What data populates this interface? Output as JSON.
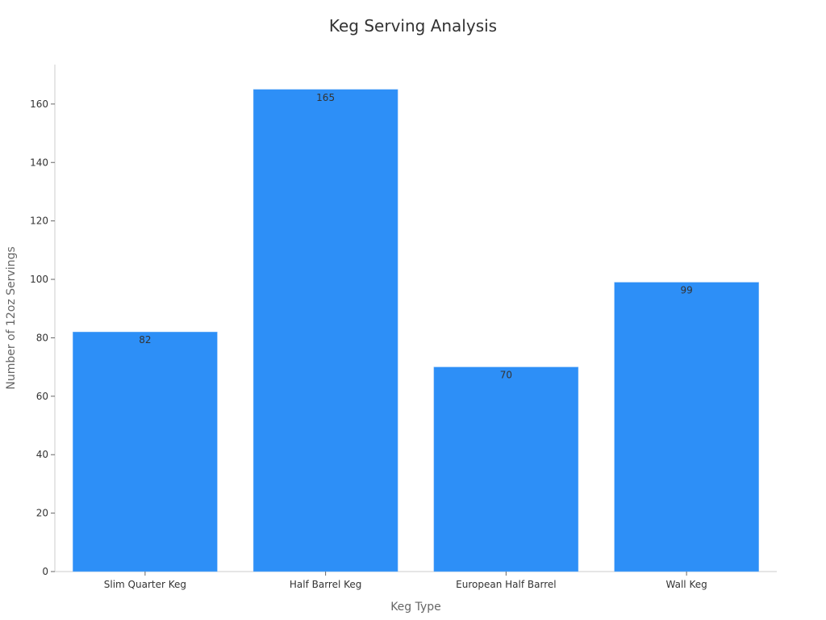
{
  "chart_data": {
    "type": "bar",
    "title": "Keg Serving Analysis",
    "xlabel": "Keg Type",
    "ylabel": "Number of 12oz Servings",
    "categories": [
      "Slim Quarter Keg",
      "Half Barrel Keg",
      "European Half Barrel",
      "Wall Keg"
    ],
    "values": [
      82,
      165,
      70,
      99
    ],
    "ylim": [
      0,
      173.5
    ],
    "yticks": [
      0,
      20,
      40,
      60,
      80,
      100,
      120,
      140,
      160
    ],
    "grid": false,
    "legend": null,
    "bar_color": "#2d8ff7"
  }
}
